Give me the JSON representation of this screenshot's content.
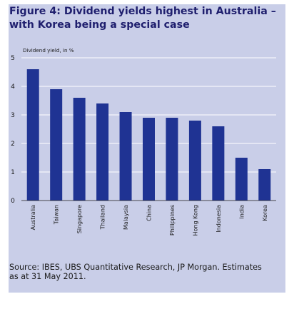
{
  "title_line1": "Figure 4: Dividend yields highest in Australia –",
  "title_line2": "with Korea being a special case",
  "source_line1": "Source: IBES, UBS Quantitative Research, JP Morgan. Estimates",
  "source_line2": "as at 31 May 2011.",
  "colors": {
    "panel": "#c9cee8",
    "bar": "#1f3393",
    "title": "#1f1f6e",
    "grid": "#ffffff"
  },
  "chart_data": {
    "type": "bar",
    "title": "Figure 4: Dividend yields highest in Australia – with Korea being a special case",
    "ylabel": "Dividend yield, in %",
    "xlabel": "",
    "ylim": [
      0,
      5
    ],
    "yticks": [
      0,
      1,
      2,
      3,
      4,
      5
    ],
    "grid": true,
    "categories": [
      "Australia",
      "Taiwan",
      "Singapore",
      "Thailand",
      "Malaysia",
      "China",
      "Philippines",
      "Hong Kong",
      "Indonesia",
      "India",
      "Korea"
    ],
    "values": [
      4.6,
      3.9,
      3.6,
      3.4,
      3.1,
      2.9,
      2.9,
      2.8,
      2.6,
      1.5,
      1.1
    ]
  }
}
